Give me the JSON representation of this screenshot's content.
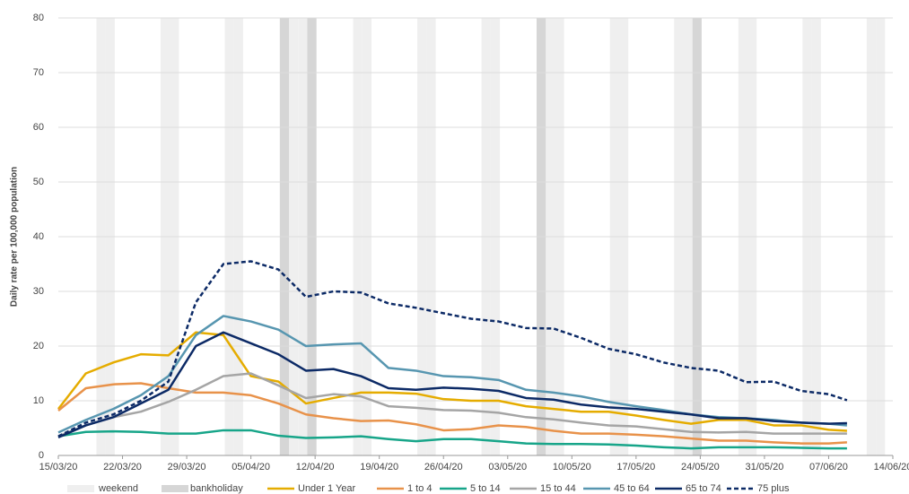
{
  "chart_data": {
    "type": "line",
    "y_label": "Daily rate per 100,000 population",
    "xlim": [
      "15/03/20",
      "14/06/20"
    ],
    "xticks": [
      "15/03/20",
      "22/03/20",
      "29/03/20",
      "05/04/20",
      "12/04/20",
      "19/04/20",
      "26/04/20",
      "03/05/20",
      "10/05/20",
      "17/05/20",
      "24/05/20",
      "31/05/20",
      "07/06/20",
      "14/06/20"
    ],
    "ylim": [
      0,
      80
    ],
    "yticks": [
      0,
      10,
      20,
      30,
      40,
      50,
      60,
      70,
      80
    ],
    "grid": true,
    "legend": "bottom",
    "bands": [
      {
        "name": "weekend",
        "color": "#efefef",
        "dates": [
          "21/03/20",
          "22/03/20",
          "28/03/20",
          "29/03/20",
          "04/04/20",
          "05/04/20",
          "11/04/20",
          "12/04/20",
          "18/04/20",
          "19/04/20",
          "25/04/20",
          "26/04/20",
          "02/05/20",
          "03/05/20",
          "09/05/20",
          "10/05/20",
          "16/05/20",
          "17/05/20",
          "23/05/20",
          "24/05/20",
          "30/05/20",
          "31/05/20",
          "06/06/20",
          "07/06/20",
          "13/06/20",
          "14/06/20"
        ]
      },
      {
        "name": "bankholiday",
        "color": "#d6d6d6",
        "dates": [
          "10/04/20",
          "13/04/20",
          "08/05/20",
          "25/05/20"
        ]
      }
    ],
    "x": [
      "15/03/20",
      "18/03/20",
      "21/03/20",
      "24/03/20",
      "27/03/20",
      "30/03/20",
      "02/04/20",
      "05/04/20",
      "08/04/20",
      "11/04/20",
      "14/04/20",
      "17/04/20",
      "20/04/20",
      "23/04/20",
      "26/04/20",
      "29/04/20",
      "02/05/20",
      "05/05/20",
      "08/05/20",
      "11/05/20",
      "14/05/20",
      "17/05/20",
      "20/05/20",
      "23/05/20",
      "26/05/20",
      "29/05/20",
      "01/06/20",
      "04/06/20",
      "07/06/20",
      "09/06/20"
    ],
    "series": [
      {
        "name": "Under 1 Year",
        "color": "#e5ac00",
        "dash": false,
        "values": [
          8.5,
          15.0,
          17.0,
          18.5,
          18.3,
          22.5,
          22.0,
          14.5,
          13.5,
          9.5,
          10.5,
          11.5,
          11.5,
          11.3,
          10.3,
          10.0,
          10.0,
          9.0,
          8.5,
          8.0,
          8.0,
          7.3,
          6.5,
          5.8,
          6.5,
          6.5,
          5.5,
          5.5,
          4.7,
          4.5
        ]
      },
      {
        "name": "1 to 4",
        "color": "#e8924a",
        "dash": false,
        "values": [
          8.2,
          12.3,
          13.0,
          13.2,
          12.3,
          11.5,
          11.5,
          11.0,
          9.5,
          7.5,
          6.8,
          6.3,
          6.4,
          5.7,
          4.6,
          4.8,
          5.5,
          5.2,
          4.5,
          4.0,
          4.0,
          3.8,
          3.5,
          3.1,
          2.7,
          2.7,
          2.4,
          2.2,
          2.2,
          2.4
        ]
      },
      {
        "name": "5 to 14",
        "color": "#17a589",
        "dash": false,
        "values": [
          3.5,
          4.3,
          4.4,
          4.3,
          4.0,
          4.0,
          4.6,
          4.6,
          3.6,
          3.2,
          3.3,
          3.5,
          3.0,
          2.6,
          3.0,
          3.0,
          2.6,
          2.2,
          2.1,
          2.1,
          2.0,
          1.8,
          1.5,
          1.3,
          1.5,
          1.5,
          1.5,
          1.4,
          1.3,
          1.3
        ]
      },
      {
        "name": "15 to 44",
        "color": "#a5a5a5",
        "dash": false,
        "values": [
          3.5,
          5.5,
          7.0,
          8.0,
          9.8,
          12.0,
          14.5,
          15.0,
          12.8,
          10.5,
          11.2,
          10.8,
          9.0,
          8.7,
          8.3,
          8.2,
          7.8,
          7.0,
          6.6,
          6.0,
          5.5,
          5.3,
          4.8,
          4.3,
          4.2,
          4.3,
          4.0,
          4.0,
          4.0,
          4.0
        ]
      },
      {
        "name": "45 to 64",
        "color": "#5796b0",
        "dash": false,
        "values": [
          4.2,
          6.5,
          8.5,
          11.0,
          14.5,
          22.0,
          25.5,
          24.5,
          23.0,
          20.0,
          20.3,
          20.5,
          16.0,
          15.5,
          14.5,
          14.3,
          13.8,
          12.0,
          11.5,
          10.8,
          9.8,
          9.0,
          8.3,
          7.5,
          7.0,
          6.8,
          6.5,
          6.0,
          5.8,
          5.5
        ]
      },
      {
        "name": "65 to 74",
        "color": "#0c2a66",
        "dash": false,
        "values": [
          3.3,
          5.5,
          7.0,
          9.5,
          12.0,
          20.0,
          22.5,
          20.5,
          18.5,
          15.5,
          15.8,
          14.5,
          12.3,
          12.0,
          12.4,
          12.2,
          11.8,
          10.5,
          10.2,
          9.3,
          8.8,
          8.5,
          8.0,
          7.5,
          6.8,
          6.8,
          6.3,
          6.0,
          5.8,
          5.9
        ]
      },
      {
        "name": "75 plus",
        "color": "#0c2a66",
        "dash": true,
        "values": [
          3.5,
          6.0,
          7.5,
          10.0,
          13.5,
          28.0,
          35.0,
          35.5,
          34.0,
          29.0,
          30.0,
          29.8,
          27.8,
          27.0,
          26.0,
          25.0,
          24.5,
          23.3,
          23.2,
          21.5,
          19.5,
          18.5,
          17.0,
          16.0,
          15.5,
          13.4,
          13.5,
          11.8,
          11.2,
          10.1
        ]
      }
    ]
  }
}
